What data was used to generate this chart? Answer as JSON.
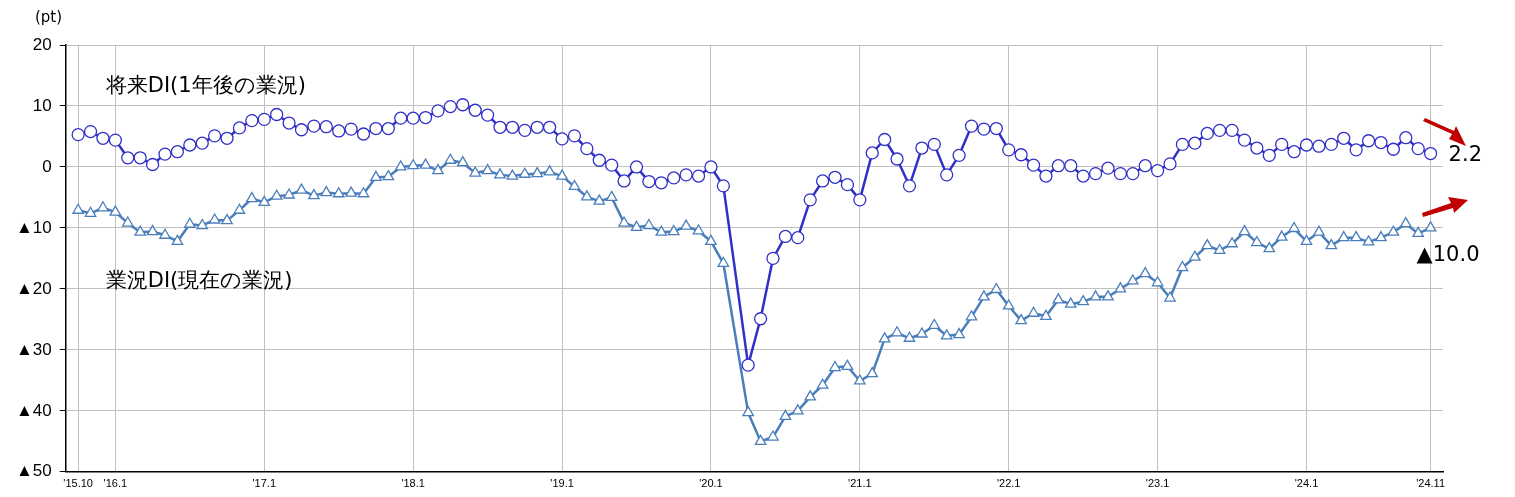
{
  "chart_data": {
    "type": "line",
    "ylabel": "(pt)",
    "categories": [
      "'15.10",
      null,
      null,
      "'16.1",
      null,
      null,
      null,
      null,
      null,
      null,
      null,
      null,
      null,
      null,
      null,
      "'17.1",
      null,
      null,
      null,
      null,
      null,
      null,
      null,
      null,
      null,
      null,
      null,
      "'18.1",
      null,
      null,
      null,
      null,
      null,
      null,
      null,
      null,
      null,
      null,
      null,
      "'19.1",
      null,
      null,
      null,
      null,
      null,
      null,
      null,
      null,
      null,
      null,
      null,
      "'20.1",
      null,
      null,
      null,
      null,
      null,
      null,
      null,
      null,
      null,
      null,
      null,
      "'21.1",
      null,
      null,
      null,
      null,
      null,
      null,
      null,
      null,
      null,
      null,
      null,
      "'22.1",
      null,
      null,
      null,
      null,
      null,
      null,
      null,
      null,
      null,
      null,
      null,
      "'23.1",
      null,
      null,
      null,
      null,
      null,
      null,
      null,
      null,
      null,
      null,
      null,
      "'24.1",
      null,
      null,
      null,
      null,
      null,
      null,
      null,
      null,
      null,
      "'24.11"
    ],
    "series": [
      {
        "name": "将来DI(1年後の業況)",
        "color": "#3030c8",
        "marker": "circle",
        "values": [
          5.3,
          5.8,
          4.7,
          4.4,
          1.5,
          1.5,
          0.4,
          2.1,
          2.5,
          3.6,
          3.9,
          5.1,
          4.7,
          6.4,
          7.6,
          7.8,
          8.6,
          7.2,
          6.1,
          6.7,
          6.6,
          5.9,
          6.2,
          5.4,
          6.3,
          6.3,
          8.0,
          8.0,
          8.1,
          9.2,
          9.9,
          10.2,
          9.3,
          8.5,
          6.5,
          6.5,
          6.0,
          6.5,
          6.5,
          4.6,
          5.1,
          3.0,
          1.1,
          0.3,
          -2.3,
          0.0,
          -2.4,
          -2.6,
          -1.8,
          -1.3,
          -1.5,
          0.0,
          -3.1,
          null,
          -32.5,
          -24.9,
          -15.0,
          -11.4,
          -11.6,
          -5.4,
          -2.3,
          -1.7,
          -2.9,
          -5.4,
          2.3,
          4.5,
          1.3,
          -3.1,
          3.1,
          3.7,
          -1.3,
          1.9,
          6.7,
          6.2,
          6.3,
          2.8,
          2.0,
          0.3,
          -1.5,
          0.2,
          0.2,
          -1.5,
          -1.1,
          -0.2,
          -1.1,
          -1.1,
          0.2,
          -0.6,
          0.5,
          3.7,
          3.9,
          5.5,
          6.0,
          6.0,
          4.4,
          3.1,
          1.9,
          3.7,
          2.5,
          3.6,
          3.4,
          3.7,
          4.7,
          2.8,
          4.3,
          4.0,
          2.9,
          4.8,
          3.0,
          2.2
        ]
      },
      {
        "name": "業況DI(現在の業況)",
        "color": "#4a7ebb",
        "marker": "triangle",
        "values": [
          -7.1,
          -7.6,
          -6.7,
          -7.4,
          -9.2,
          -10.7,
          -10.6,
          -11.2,
          -12.2,
          -9.4,
          -9.6,
          -8.7,
          -8.8,
          -7.1,
          -5.2,
          -5.8,
          -4.8,
          -4.6,
          -3.8,
          -4.7,
          -4.2,
          -4.4,
          -4.3,
          -4.4,
          -1.7,
          -1.6,
          0.0,
          0.2,
          0.3,
          -0.6,
          1.1,
          0.7,
          -1.0,
          -0.6,
          -1.3,
          -1.5,
          -1.2,
          -1.1,
          -0.8,
          -1.5,
          -3.2,
          -4.9,
          -5.6,
          -5.0,
          -9.2,
          -9.9,
          -9.6,
          -10.7,
          -10.6,
          -9.7,
          -10.5,
          -12.2,
          -15.8,
          null,
          -40.3,
          -45.0,
          -44.3,
          -40.9,
          -40.0,
          -37.7,
          -35.8,
          -32.9,
          -32.7,
          -35.1,
          -33.9,
          -28.2,
          -27.2,
          -28.1,
          -27.4,
          -26.0,
          -27.7,
          -27.5,
          -24.6,
          -21.3,
          -20.1,
          -22.8,
          -25.2,
          -24.0,
          -24.5,
          -21.8,
          -22.5,
          -22.1,
          -21.3,
          -21.3,
          -20.0,
          -18.7,
          -17.5,
          -19.0,
          -21.5,
          -16.5,
          -14.8,
          -12.9,
          -13.7,
          -12.6,
          -10.6,
          -12.4,
          -13.4,
          -11.5,
          -10.1,
          -12.2,
          -10.7,
          -12.9,
          -11.6,
          -11.6,
          -12.3,
          -11.6,
          -10.7,
          -9.3,
          -10.9,
          -10.0
        ]
      }
    ],
    "ylim": [
      -50,
      20
    ],
    "yticks": [
      20,
      10,
      0,
      {
        "value": -10,
        "label": "▲10"
      },
      {
        "value": -20,
        "label": "▲20"
      },
      {
        "value": -30,
        "label": "▲30"
      },
      {
        "value": -40,
        "label": "▲40"
      },
      {
        "value": -50,
        "label": "▲50"
      }
    ],
    "grid": true,
    "legend": false,
    "line_style": "solid",
    "annotations": [
      {
        "text": "2.2",
        "x": "'24.11",
        "y": 2.2
      },
      {
        "text": "▲10.0",
        "x": "'24.11",
        "y": -10.0
      }
    ]
  }
}
